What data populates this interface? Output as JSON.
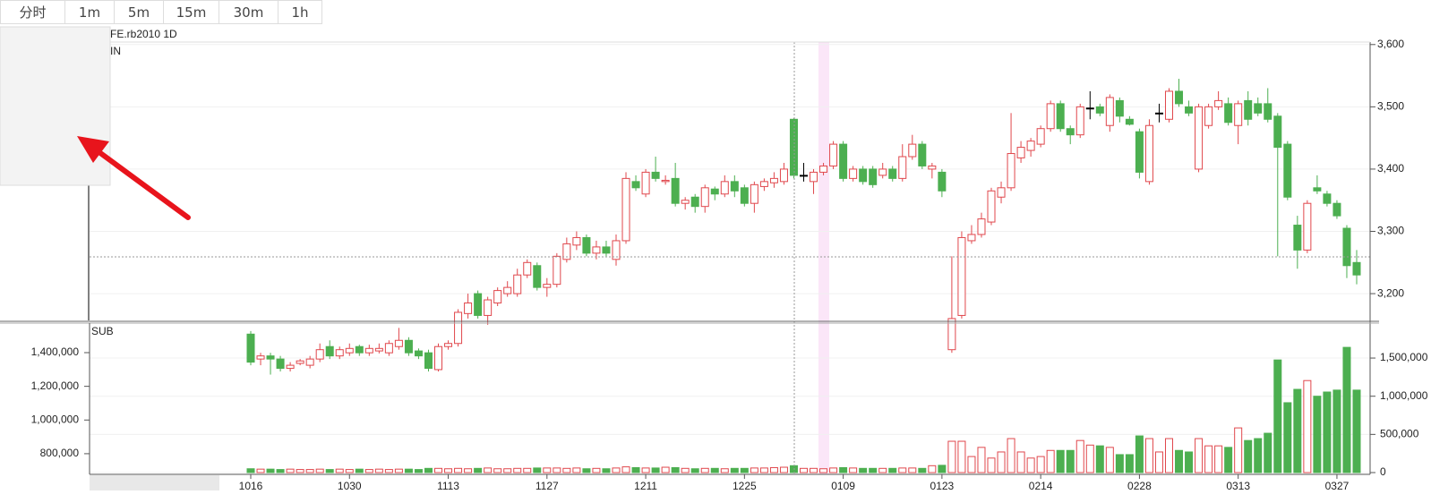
{
  "buttons": [
    "分时",
    "1m",
    "5m",
    "15m",
    "30m",
    "1h"
  ],
  "chart_data": {
    "type": "candlestick",
    "title": "FE.rb2010 1D",
    "main_label": "IN",
    "sub_label": "SUB",
    "categories": [
      "1016",
      null,
      null,
      null,
      null,
      null,
      null,
      null,
      null,
      null,
      "1030",
      null,
      null,
      null,
      null,
      null,
      null,
      null,
      null,
      null,
      "1113",
      null,
      null,
      null,
      null,
      null,
      null,
      null,
      null,
      null,
      "1127",
      null,
      null,
      null,
      null,
      null,
      null,
      null,
      null,
      null,
      "1211",
      null,
      null,
      null,
      null,
      null,
      null,
      null,
      null,
      null,
      "1225",
      null,
      null,
      null,
      null,
      null,
      null,
      null,
      null,
      null,
      "0109",
      null,
      null,
      null,
      null,
      null,
      null,
      null,
      null,
      null,
      "0123",
      null,
      null,
      null,
      null,
      null,
      null,
      null,
      null,
      null,
      "0214",
      null,
      null,
      null,
      null,
      null,
      null,
      null,
      null,
      null,
      "0228",
      null,
      null,
      null,
      null,
      null,
      null,
      null,
      null,
      null,
      "0313",
      null,
      null,
      null,
      null,
      null,
      null,
      null,
      null,
      null,
      "0327",
      null,
      null
    ],
    "open": [
      3135,
      3095,
      3100,
      3095,
      3080,
      3088,
      3085,
      3095,
      3115,
      3100,
      3105,
      3115,
      3105,
      3108,
      3105,
      3115,
      3125,
      3108,
      3105,
      3078,
      3115,
      3120,
      3168,
      3200,
      3165,
      3185,
      3200,
      3200,
      3230,
      3245,
      3210,
      3215,
      3255,
      3278,
      3290,
      3265,
      3275,
      3255,
      3285,
      3380,
      3360,
      3395,
      3380,
      3385,
      3345,
      3355,
      3340,
      3368,
      3360,
      3380,
      3370,
      3345,
      3372,
      3378,
      3380,
      3480,
      3390,
      3380,
      3395,
      3405,
      3440,
      3385,
      3400,
      3400,
      3390,
      3400,
      3385,
      3420,
      3440,
      3400,
      3395,
      3110,
      3165,
      3285,
      3295,
      3315,
      3355,
      3370,
      3418,
      3430,
      3440,
      3465,
      3505,
      3465,
      3455,
      3498,
      3500,
      3470,
      3510,
      3480,
      3460,
      3380,
      3490,
      3480,
      3525,
      3500,
      3400,
      3470,
      3500,
      3505,
      3470,
      3510,
      3505,
      3505,
      3485,
      3440,
      3310,
      3270,
      3370,
      3360,
      3345,
      3305,
      3250
    ],
    "high": [
      3140,
      3105,
      3105,
      3100,
      3090,
      3095,
      3100,
      3120,
      3125,
      3115,
      3120,
      3118,
      3118,
      3120,
      3125,
      3145,
      3130,
      3112,
      3110,
      3120,
      3125,
      3175,
      3200,
      3205,
      3195,
      3210,
      3220,
      3240,
      3255,
      3250,
      3225,
      3265,
      3290,
      3300,
      3295,
      3285,
      3285,
      3295,
      3395,
      3390,
      3400,
      3420,
      3390,
      3410,
      3355,
      3360,
      3375,
      3372,
      3390,
      3390,
      3375,
      3380,
      3385,
      3395,
      3410,
      3482,
      3410,
      3400,
      3410,
      3445,
      3445,
      3405,
      3405,
      3405,
      3410,
      3405,
      3440,
      3455,
      3445,
      3410,
      3400,
      3260,
      3300,
      3310,
      3330,
      3370,
      3380,
      3490,
      3445,
      3450,
      3470,
      3510,
      3510,
      3470,
      3505,
      3525,
      3505,
      3520,
      3515,
      3485,
      3465,
      3480,
      3505,
      3530,
      3545,
      3510,
      3505,
      3505,
      3525,
      3515,
      3510,
      3525,
      3515,
      3530,
      3490,
      3445,
      3325,
      3350,
      3390,
      3365,
      3350,
      3310,
      3270
    ],
    "low": [
      3085,
      3085,
      3070,
      3075,
      3075,
      3085,
      3080,
      3090,
      3095,
      3095,
      3100,
      3100,
      3100,
      3104,
      3100,
      3110,
      3100,
      3095,
      3075,
      3075,
      3110,
      3115,
      3160,
      3160,
      3150,
      3180,
      3195,
      3195,
      3225,
      3205,
      3195,
      3210,
      3250,
      3270,
      3260,
      3255,
      3260,
      3245,
      3280,
      3365,
      3355,
      3380,
      3375,
      3340,
      3335,
      3330,
      3330,
      3350,
      3355,
      3355,
      3340,
      3330,
      3365,
      3370,
      3375,
      3385,
      3380,
      3360,
      3390,
      3400,
      3380,
      3380,
      3375,
      3370,
      3385,
      3380,
      3380,
      3415,
      3400,
      3385,
      3355,
      3105,
      3160,
      3280,
      3290,
      3310,
      3345,
      3365,
      3410,
      3420,
      3435,
      3460,
      3460,
      3440,
      3450,
      3480,
      3485,
      3460,
      3475,
      3470,
      3385,
      3375,
      3475,
      3475,
      3500,
      3485,
      3395,
      3465,
      3495,
      3470,
      3440,
      3470,
      3485,
      3475,
      3260,
      3350,
      3240,
      3265,
      3360,
      3340,
      3320,
      3225,
      3215
    ],
    "close": [
      3090,
      3100,
      3095,
      3080,
      3085,
      3092,
      3095,
      3110,
      3100,
      3110,
      3112,
      3105,
      3112,
      3112,
      3120,
      3125,
      3105,
      3100,
      3080,
      3115,
      3120,
      3170,
      3185,
      3165,
      3190,
      3205,
      3210,
      3230,
      3250,
      3210,
      3215,
      3260,
      3280,
      3290,
      3265,
      3275,
      3265,
      3285,
      3385,
      3370,
      3395,
      3385,
      3382,
      3345,
      3350,
      3340,
      3370,
      3360,
      3380,
      3365,
      3345,
      3375,
      3380,
      3385,
      3400,
      3390,
      3390,
      3395,
      3405,
      3440,
      3385,
      3400,
      3380,
      3375,
      3400,
      3385,
      3420,
      3440,
      3405,
      3405,
      3365,
      3160,
      3290,
      3295,
      3320,
      3365,
      3370,
      3425,
      3435,
      3445,
      3465,
      3505,
      3465,
      3455,
      3500,
      3498,
      3490,
      3515,
      3485,
      3472,
      3395,
      3470,
      3490,
      3525,
      3505,
      3490,
      3500,
      3500,
      3510,
      3475,
      3505,
      3480,
      3490,
      3480,
      3435,
      3355,
      3270,
      3345,
      3365,
      3345,
      3325,
      3245,
      3230
    ],
    "volume": [
      50000,
      45000,
      45000,
      40000,
      45000,
      40000,
      40000,
      45000,
      40000,
      45000,
      40000,
      45000,
      40000,
      45000,
      40000,
      45000,
      45000,
      40000,
      55000,
      55000,
      50000,
      55000,
      50000,
      55000,
      60000,
      50000,
      50000,
      55000,
      55000,
      60000,
      60000,
      60000,
      55000,
      60000,
      50000,
      55000,
      50000,
      60000,
      75000,
      65000,
      60000,
      60000,
      70000,
      65000,
      55000,
      50000,
      55000,
      55000,
      50000,
      55000,
      55000,
      60000,
      60000,
      65000,
      70000,
      90000,
      55000,
      55000,
      50000,
      60000,
      65000,
      60000,
      55000,
      55000,
      55000,
      55000,
      60000,
      60000,
      55000,
      90000,
      95000,
      410000,
      410000,
      210000,
      330000,
      190000,
      270000,
      445000,
      270000,
      190000,
      210000,
      290000,
      290000,
      290000,
      420000,
      360000,
      350000,
      330000,
      235000,
      235000,
      480000,
      445000,
      270000,
      445000,
      290000,
      270000,
      445000,
      350000,
      350000,
      330000,
      585000,
      420000,
      445000,
      515000,
      1475000,
      915000,
      1090000,
      1205000,
      1000000,
      1055000,
      1080000,
      1640000,
      1080000
    ],
    "ylim": [
      3157,
      3604
    ],
    "yticks": [
      {
        "value": 3200,
        "label": "3,200"
      },
      {
        "value": 3300,
        "label": "3,300"
      },
      {
        "value": 3400,
        "label": "3,400"
      },
      {
        "value": 3500,
        "label": "3,500"
      },
      {
        "value": 3600,
        "label": "3,600"
      }
    ],
    "y2lim": [
      0,
      1946000
    ],
    "y2ticks": [
      0,
      {
        "value": 500000,
        "label": "500,000"
      },
      {
        "value": 1000000,
        "label": "1,000,000"
      },
      {
        "value": 1500000,
        "label": "1,500,000"
      }
    ],
    "sub_left_ylim": [
      688000,
      1570000
    ],
    "sub_left_ticks": [
      {
        "value": 800000,
        "label": "800,000"
      },
      {
        "value": 1000000,
        "label": "1,000,000"
      },
      {
        "value": 1200000,
        "label": "1,200,000"
      },
      {
        "value": 1400000,
        "label": "1,400,000"
      }
    ],
    "up_color": "#e0474c",
    "down_color": "#4caf50",
    "grid": true
  }
}
